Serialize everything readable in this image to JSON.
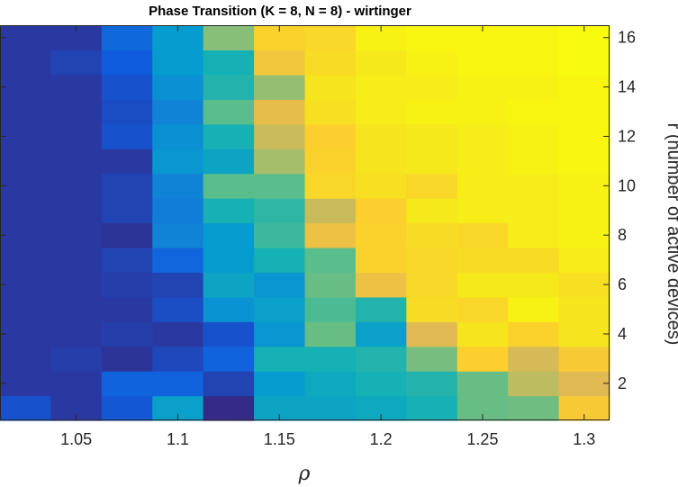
{
  "chart_data": {
    "type": "heatmap",
    "title": "Phase Transition (K = 8, N = 8) - wirtinger",
    "xlabel": "ρ",
    "ylabel": "r (number of active devices)",
    "x": [
      1.025,
      1.05,
      1.075,
      1.1,
      1.125,
      1.15,
      1.175,
      1.2,
      1.225,
      1.25,
      1.275,
      1.3
    ],
    "y": [
      1,
      2,
      3,
      4,
      5,
      6,
      7,
      8,
      9,
      10,
      11,
      12,
      13,
      14,
      15,
      16
    ],
    "xticks": [
      "1.05",
      "1.1",
      "1.15",
      "1.2",
      "1.25",
      "1.3"
    ],
    "yticks": [
      "2",
      "4",
      "6",
      "8",
      "10",
      "12",
      "14",
      "16"
    ],
    "xlim": [
      1.0125,
      1.3125
    ],
    "ylim": [
      0.5,
      16.5
    ],
    "colormap": "parula",
    "color_range": [
      0,
      1
    ],
    "values": [
      [
        0.08,
        0.03,
        0.09,
        0.32,
        0.0,
        0.34,
        0.34,
        0.36,
        0.4,
        0.52,
        0.53,
        0.78
      ],
      [
        0.03,
        0.03,
        0.12,
        0.12,
        0.05,
        0.3,
        0.36,
        0.4,
        0.42,
        0.52,
        0.64,
        0.7
      ],
      [
        0.03,
        0.04,
        0.02,
        0.06,
        0.12,
        0.4,
        0.4,
        0.42,
        0.54,
        0.8,
        0.68,
        0.78
      ],
      [
        0.03,
        0.03,
        0.04,
        0.03,
        0.08,
        0.28,
        0.52,
        0.32,
        0.7,
        0.9,
        0.82,
        0.9
      ],
      [
        0.03,
        0.03,
        0.03,
        0.07,
        0.27,
        0.32,
        0.48,
        0.42,
        0.86,
        0.84,
        0.96,
        0.9
      ],
      [
        0.03,
        0.03,
        0.04,
        0.05,
        0.34,
        0.28,
        0.52,
        0.74,
        0.84,
        0.92,
        0.92,
        0.88
      ],
      [
        0.03,
        0.03,
        0.05,
        0.13,
        0.3,
        0.4,
        0.5,
        0.82,
        0.84,
        0.86,
        0.86,
        0.94
      ],
      [
        0.03,
        0.03,
        0.02,
        0.22,
        0.3,
        0.46,
        0.74,
        0.82,
        0.86,
        0.84,
        0.94,
        0.96
      ],
      [
        0.03,
        0.03,
        0.05,
        0.2,
        0.4,
        0.44,
        0.66,
        0.8,
        0.92,
        0.94,
        0.94,
        0.96
      ],
      [
        0.03,
        0.03,
        0.05,
        0.22,
        0.5,
        0.5,
        0.84,
        0.88,
        0.84,
        0.94,
        0.94,
        0.96
      ],
      [
        0.03,
        0.03,
        0.03,
        0.28,
        0.34,
        0.6,
        0.82,
        0.9,
        0.92,
        0.94,
        0.96,
        0.98
      ],
      [
        0.03,
        0.03,
        0.08,
        0.26,
        0.4,
        0.66,
        0.8,
        0.9,
        0.92,
        0.94,
        0.96,
        0.98
      ],
      [
        0.03,
        0.03,
        0.07,
        0.22,
        0.5,
        0.72,
        0.88,
        0.94,
        0.96,
        0.96,
        0.98,
        0.98
      ],
      [
        0.03,
        0.03,
        0.08,
        0.26,
        0.42,
        0.58,
        0.9,
        0.94,
        0.94,
        0.96,
        0.96,
        0.98
      ],
      [
        0.03,
        0.05,
        0.1,
        0.3,
        0.4,
        0.76,
        0.86,
        0.92,
        0.96,
        0.98,
        0.98,
        1.0
      ],
      [
        0.03,
        0.03,
        0.14,
        0.3,
        0.56,
        0.82,
        0.84,
        0.96,
        0.98,
        0.98,
        0.98,
        1.0
      ]
    ]
  }
}
